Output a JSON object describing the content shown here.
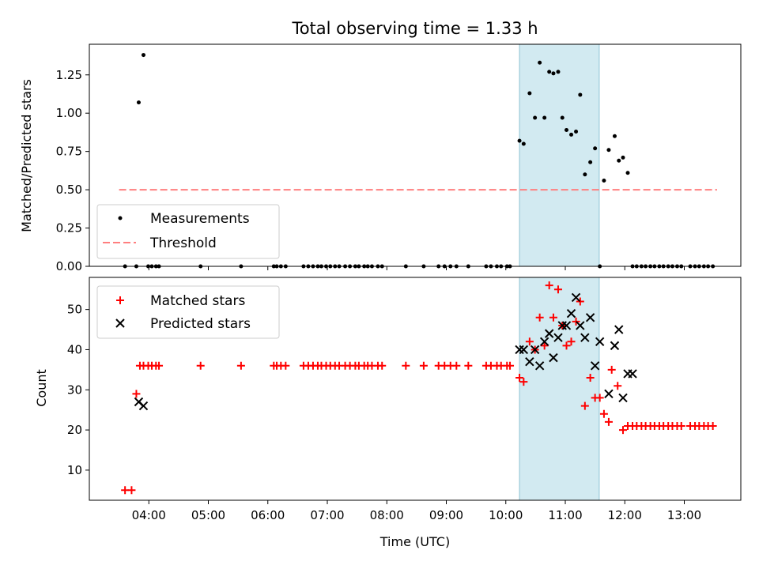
{
  "colors": {
    "measurement": "#000000",
    "threshold": "#ff7f7f",
    "matched": "#ff0000",
    "predicted": "#000000",
    "highlight": "#add8e6"
  },
  "chart_data": [
    {
      "type": "scatter",
      "title": "Total observing time = 1.33 h",
      "xlabel": "",
      "ylabel": "Matched/Predicted stars",
      "xlim_hours_utc": [
        3.0,
        13.95
      ],
      "ylim": [
        0,
        1.45
      ],
      "yticks": [
        "0.00",
        "0.25",
        "0.50",
        "0.75",
        "1.00",
        "1.25"
      ],
      "highlight_span_hours_utc": [
        10.23,
        11.57
      ],
      "legend_position": "lower-left",
      "series": [
        {
          "name": "Measurements",
          "marker": "dot",
          "x": [
            3.6,
            3.79,
            3.83,
            3.91,
            3.99,
            4.05,
            4.12,
            4.17,
            4.87,
            5.55,
            6.1,
            6.15,
            6.22,
            6.3,
            6.6,
            6.68,
            6.76,
            6.84,
            6.9,
            6.98,
            7.05,
            7.13,
            7.2,
            7.3,
            7.38,
            7.47,
            7.53,
            7.62,
            7.68,
            7.75,
            7.85,
            7.92,
            8.32,
            8.62,
            8.87,
            8.97,
            9.07,
            9.17,
            9.37,
            9.67,
            9.75,
            9.85,
            9.92,
            10.02,
            10.07,
            10.23,
            10.3,
            10.4,
            10.49,
            10.57,
            10.65,
            10.73,
            10.8,
            10.88,
            10.95,
            11.02,
            11.1,
            11.18,
            11.25,
            11.33,
            11.42,
            11.5,
            11.58,
            11.65,
            11.73,
            11.83,
            11.9,
            11.97,
            12.05,
            12.13,
            12.2,
            12.28,
            12.35,
            12.43,
            12.5,
            12.58,
            12.65,
            12.73,
            12.8,
            12.88,
            12.95,
            13.1,
            13.18,
            13.25,
            13.33,
            13.4,
            13.48
          ],
          "y": [
            0,
            0,
            1.07,
            1.38,
            0,
            0,
            0,
            0,
            0,
            0,
            0,
            0,
            0,
            0,
            0,
            0,
            0,
            0,
            0,
            0,
            0,
            0,
            0,
            0,
            0,
            0,
            0,
            0,
            0,
            0,
            0,
            0,
            0,
            0,
            0,
            0,
            0,
            0,
            0,
            0,
            0,
            0,
            0,
            0,
            0,
            0.82,
            0.8,
            1.13,
            0.97,
            1.33,
            0.97,
            1.27,
            1.26,
            1.27,
            0.97,
            0.89,
            0.86,
            0.88,
            1.12,
            0.6,
            0.68,
            0.77,
            0,
            0.56,
            0.76,
            0.85,
            0.69,
            0.71,
            0.61,
            0,
            0,
            0,
            0,
            0,
            0,
            0,
            0,
            0,
            0,
            0,
            0,
            0,
            0,
            0,
            0,
            0,
            0
          ]
        },
        {
          "name": "Threshold",
          "style": "dashed-line",
          "x": [
            3.5,
            13.55
          ],
          "y": [
            0.5,
            0.5
          ]
        }
      ]
    },
    {
      "type": "scatter",
      "title": "",
      "xlabel": "Time (UTC)",
      "ylabel": "Count",
      "xlim_hours_utc": [
        3.0,
        13.95
      ],
      "ylim": [
        2.5,
        58
      ],
      "xticks": [
        "04:00",
        "05:00",
        "06:00",
        "07:00",
        "08:00",
        "09:00",
        "10:00",
        "11:00",
        "12:00",
        "13:00"
      ],
      "yticks": [
        "10",
        "20",
        "30",
        "40",
        "50"
      ],
      "highlight_span_hours_utc": [
        10.23,
        11.57
      ],
      "legend_position": "upper-left",
      "series": [
        {
          "name": "Matched stars",
          "marker": "plus",
          "x": [
            3.6,
            3.71,
            3.79,
            3.85,
            3.91,
            3.99,
            4.05,
            4.12,
            4.17,
            4.87,
            5.55,
            6.1,
            6.15,
            6.22,
            6.3,
            6.6,
            6.68,
            6.76,
            6.84,
            6.9,
            6.98,
            7.05,
            7.13,
            7.2,
            7.3,
            7.38,
            7.47,
            7.53,
            7.62,
            7.68,
            7.75,
            7.85,
            7.92,
            8.32,
            8.62,
            8.87,
            8.97,
            9.07,
            9.17,
            9.37,
            9.67,
            9.75,
            9.85,
            9.92,
            10.02,
            10.07,
            10.23,
            10.3,
            10.4,
            10.49,
            10.57,
            10.65,
            10.73,
            10.8,
            10.88,
            10.95,
            11.02,
            11.1,
            11.18,
            11.25,
            11.33,
            11.42,
            11.5,
            11.58,
            11.65,
            11.73,
            11.78,
            11.88,
            11.97,
            12.05,
            12.13,
            12.2,
            12.28,
            12.35,
            12.43,
            12.5,
            12.58,
            12.65,
            12.73,
            12.8,
            12.88,
            12.95,
            13.1,
            13.18,
            13.25,
            13.33,
            13.4,
            13.48
          ],
          "y": [
            5,
            5,
            29,
            36,
            36,
            36,
            36,
            36,
            36,
            36,
            36,
            36,
            36,
            36,
            36,
            36,
            36,
            36,
            36,
            36,
            36,
            36,
            36,
            36,
            36,
            36,
            36,
            36,
            36,
            36,
            36,
            36,
            36,
            36,
            36,
            36,
            36,
            36,
            36,
            36,
            36,
            36,
            36,
            36,
            36,
            36,
            33,
            32,
            42,
            40,
            48,
            41,
            56,
            48,
            55,
            46,
            41,
            42,
            47,
            52,
            26,
            33,
            28,
            28,
            24,
            22,
            35,
            31,
            20,
            21,
            21,
            21,
            21,
            21,
            21,
            21,
            21,
            21,
            21,
            21,
            21,
            21,
            21,
            21,
            21,
            21,
            21,
            21
          ]
        },
        {
          "name": "Predicted stars",
          "marker": "x",
          "x": [
            3.83,
            3.91,
            10.23,
            10.3,
            10.4,
            10.49,
            10.57,
            10.65,
            10.73,
            10.8,
            10.88,
            10.95,
            11.02,
            11.1,
            11.18,
            11.25,
            11.33,
            11.42,
            11.5,
            11.58,
            11.73,
            11.83,
            11.9,
            11.97,
            12.05,
            12.13
          ],
          "y": [
            27,
            26,
            40,
            40,
            37,
            40,
            36,
            42,
            44,
            38,
            43,
            46,
            46,
            49,
            53,
            46,
            43,
            48,
            36,
            42,
            29,
            41,
            45,
            28,
            34,
            34
          ]
        }
      ]
    }
  ]
}
